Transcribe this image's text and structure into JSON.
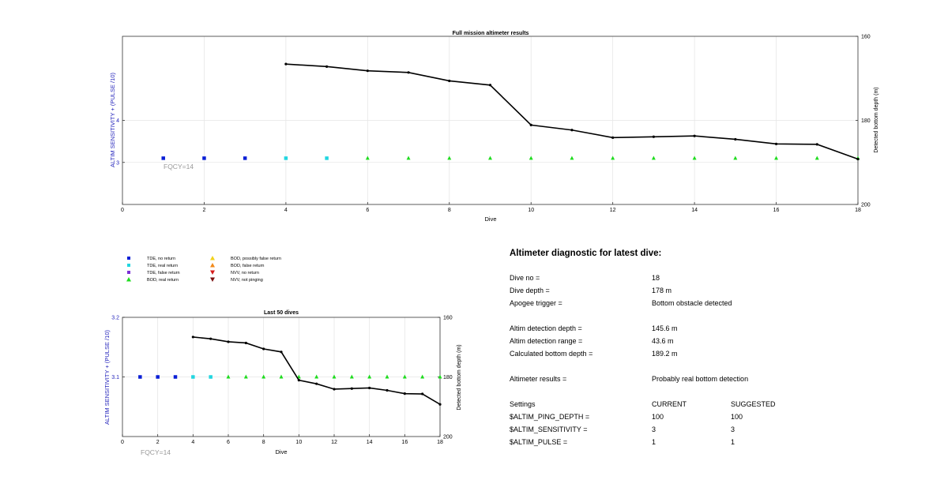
{
  "colors": {
    "tde_no_return": "#0a1fd6",
    "tde_real_return": "#22d6e0",
    "tde_false_return": "#7b2fd6",
    "bod_real_return": "#1fdc1f",
    "bod_possibly_false": "#f2d21a",
    "bod_false_return": "#f28a1a",
    "nvv_no_return": "#d61a1a",
    "nvv_not_pinging": "#7a1010",
    "depth_line": "#000000",
    "left_axis": "#2222bb",
    "fqcy_text": "#999999",
    "grid": "#e6e6e6"
  },
  "legend": [
    {
      "label": "TDE, no return",
      "marker": "square",
      "color_key": "tde_no_return"
    },
    {
      "label": "TDE, real return",
      "marker": "square",
      "color_key": "tde_real_return"
    },
    {
      "label": "TDE, false return",
      "marker": "square",
      "color_key": "tde_false_return"
    },
    {
      "label": "BOD, real return",
      "marker": "triangle-up",
      "color_key": "bod_real_return"
    },
    {
      "label": "BOD, possibly false return",
      "marker": "triangle-up",
      "color_key": "bod_possibly_false"
    },
    {
      "label": "BOD, false return",
      "marker": "triangle-up",
      "color_key": "bod_false_return"
    },
    {
      "label": "NVV, no return",
      "marker": "triangle-down",
      "color_key": "nvv_no_return"
    },
    {
      "label": "NVV, not pinging",
      "marker": "triangle-down",
      "color_key": "nvv_not_pinging"
    }
  ],
  "chart_data": [
    {
      "type": "scatter",
      "title": "Full mission altimeter results",
      "xlabel": "Dive",
      "ylabel": "ALTIM SENSITIVITY + (PULSE /10)",
      "ylabel_right": "Detected bottom depth (m)",
      "xlim": [
        0,
        18
      ],
      "xticks": [
        0,
        2,
        4,
        6,
        8,
        10,
        12,
        14,
        16,
        18
      ],
      "ylim": [
        2,
        6
      ],
      "yticks": [
        3,
        4
      ],
      "ylim_right": [
        160,
        200
      ],
      "ylim_right_reversed": true,
      "yticks_right": [
        160,
        180,
        200
      ],
      "grid": true,
      "annotation": "FQCY=14",
      "markers": [
        {
          "x": 1,
          "y": 3.1,
          "class": "tde_no_return"
        },
        {
          "x": 2,
          "y": 3.1,
          "class": "tde_no_return"
        },
        {
          "x": 3,
          "y": 3.1,
          "class": "tde_no_return"
        },
        {
          "x": 4,
          "y": 3.1,
          "class": "tde_real_return"
        },
        {
          "x": 5,
          "y": 3.1,
          "class": "tde_real_return"
        },
        {
          "x": 6,
          "y": 3.1,
          "class": "bod_real_return"
        },
        {
          "x": 7,
          "y": 3.1,
          "class": "bod_real_return"
        },
        {
          "x": 8,
          "y": 3.1,
          "class": "bod_real_return"
        },
        {
          "x": 9,
          "y": 3.1,
          "class": "bod_real_return"
        },
        {
          "x": 10,
          "y": 3.1,
          "class": "bod_real_return"
        },
        {
          "x": 11,
          "y": 3.1,
          "class": "bod_real_return"
        },
        {
          "x": 12,
          "y": 3.1,
          "class": "bod_real_return"
        },
        {
          "x": 13,
          "y": 3.1,
          "class": "bod_real_return"
        },
        {
          "x": 14,
          "y": 3.1,
          "class": "bod_real_return"
        },
        {
          "x": 15,
          "y": 3.1,
          "class": "bod_real_return"
        },
        {
          "x": 16,
          "y": 3.1,
          "class": "bod_real_return"
        },
        {
          "x": 17,
          "y": 3.1,
          "class": "bod_real_return"
        },
        {
          "x": 18,
          "y": 3.1,
          "class": "bod_real_return"
        }
      ],
      "depth_series": {
        "x": [
          4,
          5,
          6,
          7,
          8,
          9,
          10,
          11,
          12,
          13,
          14,
          15,
          16,
          17,
          18
        ],
        "y": [
          166.6,
          167.2,
          168.2,
          168.6,
          170.6,
          171.6,
          181.1,
          182.3,
          184.1,
          183.9,
          183.7,
          184.5,
          185.6,
          185.7,
          189.2
        ]
      }
    },
    {
      "type": "scatter",
      "title": "Last 50 dives",
      "xlabel": "Dive",
      "ylabel": "ALTIM SENSITIVITY + (PULSE /10)",
      "ylabel_right": "Detected bottom depth (m)",
      "xlim": [
        0,
        18
      ],
      "xticks": [
        0,
        2,
        4,
        6,
        8,
        10,
        12,
        14,
        16,
        18
      ],
      "ylim": [
        3,
        3.2
      ],
      "yticks": [
        3.1,
        3.2
      ],
      "ylim_right": [
        160,
        200
      ],
      "ylim_right_reversed": true,
      "yticks_right": [
        160,
        180,
        200
      ],
      "grid": true,
      "annotation": "FQCY=14",
      "markers": [
        {
          "x": 1,
          "y": 3.1,
          "class": "tde_no_return"
        },
        {
          "x": 2,
          "y": 3.1,
          "class": "tde_no_return"
        },
        {
          "x": 3,
          "y": 3.1,
          "class": "tde_no_return"
        },
        {
          "x": 4,
          "y": 3.1,
          "class": "tde_real_return"
        },
        {
          "x": 5,
          "y": 3.1,
          "class": "tde_real_return"
        },
        {
          "x": 6,
          "y": 3.1,
          "class": "bod_real_return"
        },
        {
          "x": 7,
          "y": 3.1,
          "class": "bod_real_return"
        },
        {
          "x": 8,
          "y": 3.1,
          "class": "bod_real_return"
        },
        {
          "x": 9,
          "y": 3.1,
          "class": "bod_real_return"
        },
        {
          "x": 10,
          "y": 3.1,
          "class": "bod_real_return"
        },
        {
          "x": 11,
          "y": 3.1,
          "class": "bod_real_return"
        },
        {
          "x": 12,
          "y": 3.1,
          "class": "bod_real_return"
        },
        {
          "x": 13,
          "y": 3.1,
          "class": "bod_real_return"
        },
        {
          "x": 14,
          "y": 3.1,
          "class": "bod_real_return"
        },
        {
          "x": 15,
          "y": 3.1,
          "class": "bod_real_return"
        },
        {
          "x": 16,
          "y": 3.1,
          "class": "bod_real_return"
        },
        {
          "x": 17,
          "y": 3.1,
          "class": "bod_real_return"
        },
        {
          "x": 18,
          "y": 3.1,
          "class": "bod_real_return"
        }
      ],
      "depth_series": {
        "x": [
          4,
          5,
          6,
          7,
          8,
          9,
          10,
          11,
          12,
          13,
          14,
          15,
          16,
          17,
          18
        ],
        "y": [
          166.6,
          167.2,
          168.2,
          168.6,
          170.6,
          171.6,
          181.1,
          182.3,
          184.1,
          183.9,
          183.7,
          184.5,
          185.6,
          185.7,
          189.2
        ]
      }
    }
  ],
  "diagnostic": {
    "title": "Altimeter diagnostic for latest dive:",
    "dive_no_label": "Dive no =",
    "dive_no_value": "18",
    "dive_depth_label": "Dive depth =",
    "dive_depth_value": "178 m",
    "apogee_label": "Apogee trigger =",
    "apogee_value": "Bottom obstacle detected",
    "altim_depth_label": "Altim detection depth =",
    "altim_depth_value": "145.6 m",
    "altim_range_label": "Altim detection range =",
    "altim_range_value": "43.6 m",
    "calc_bottom_label": "Calculated bottom depth =",
    "calc_bottom_value": "189.2 m",
    "results_label": "Altimeter results =",
    "results_value": "Probably real bottom detection",
    "settings_label": "Settings",
    "current_header": "CURRENT",
    "suggested_header": "SUGGESTED",
    "ping_depth_label": "$ALTIM_PING_DEPTH =",
    "ping_depth_current": "100",
    "ping_depth_suggested": "100",
    "sensitivity_label": "$ALTIM_SENSITIVITY =",
    "sensitivity_current": "3",
    "sensitivity_suggested": "3",
    "pulse_label": "$ALTIM_PULSE =",
    "pulse_current": "1",
    "pulse_suggested": "1"
  }
}
